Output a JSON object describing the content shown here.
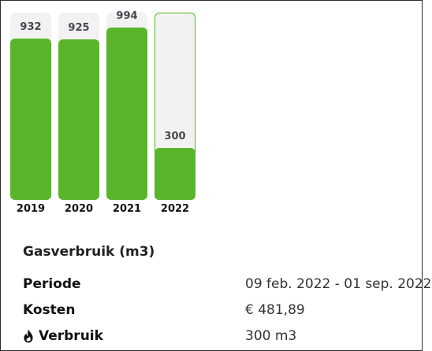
{
  "chart_data": {
    "type": "bar",
    "categories": [
      "2019",
      "2020",
      "2021",
      "2022"
    ],
    "values": [
      932,
      925,
      994,
      300
    ],
    "selected_index": 3,
    "ylim": [
      0,
      1080
    ],
    "colors": {
      "fill": "#5ab52a",
      "track": "#f2f2f2",
      "value_text": "#444a52"
    }
  },
  "details": {
    "title": "Gasverbruik (m3)",
    "rows": [
      {
        "label": "Periode",
        "value": "09 feb. 2022 - 01 sep. 2022"
      },
      {
        "label": "Kosten",
        "value": "€ 481,89"
      },
      {
        "label": "Verbruik",
        "value": "300 m3",
        "icon": "flame-icon"
      }
    ]
  }
}
